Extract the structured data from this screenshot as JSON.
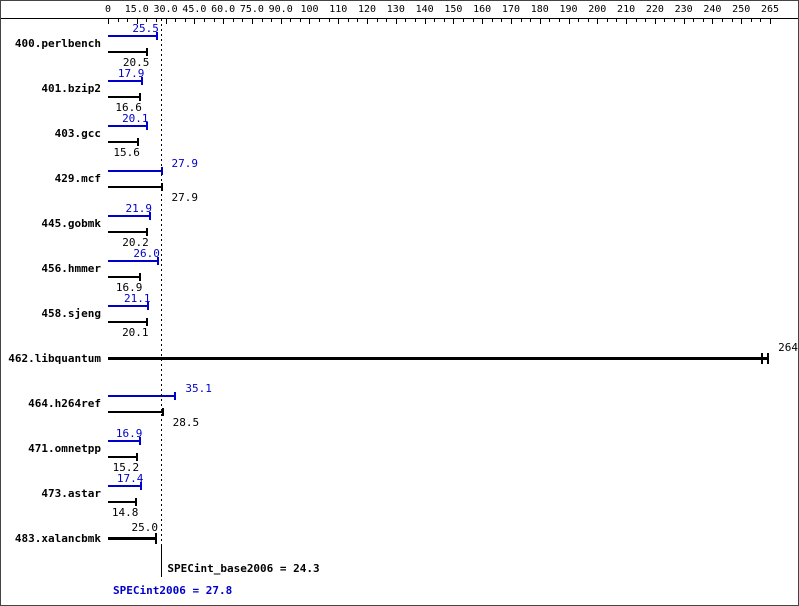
{
  "chart_data": {
    "type": "bar",
    "orientation": "horizontal",
    "grid": false,
    "legend": false,
    "axis": {
      "position": "top",
      "tick_values": [
        0,
        15,
        30,
        45,
        60,
        75,
        90,
        100,
        110,
        120,
        130,
        140,
        150,
        160,
        170,
        180,
        190,
        200,
        210,
        220,
        230,
        240,
        250,
        265
      ],
      "tick_labels": [
        "0",
        "15.0",
        "30.0",
        "45.0",
        "60.0",
        "75.0",
        "90.0",
        "100",
        "110",
        "120",
        "130",
        "140",
        "150",
        "160",
        "170",
        "180",
        "190",
        "200",
        "210",
        "220",
        "230",
        "240",
        "250",
        "265"
      ]
    },
    "series": [
      {
        "name": "peak",
        "color": "#0000cc"
      },
      {
        "name": "base",
        "color": "#000000"
      }
    ],
    "benchmarks": [
      {
        "name": "400.perlbench",
        "peak": 25.5,
        "peak_text": "25.5",
        "base": 20.5,
        "base_text": "20.5"
      },
      {
        "name": "401.bzip2",
        "peak": 17.9,
        "peak_text": "17.9",
        "base": 16.6,
        "base_text": "16.6"
      },
      {
        "name": "403.gcc",
        "peak": 20.1,
        "peak_text": "20.1",
        "base": 15.6,
        "base_text": "15.6"
      },
      {
        "name": "429.mcf",
        "peak": 27.9,
        "peak_text": "27.9",
        "base": 27.9,
        "base_text": "27.9"
      },
      {
        "name": "445.gobmk",
        "peak": 21.9,
        "peak_text": "21.9",
        "base": 20.2,
        "base_text": "20.2"
      },
      {
        "name": "456.hmmer",
        "peak": 26.0,
        "peak_text": "26.0",
        "base": 16.9,
        "base_text": "16.9"
      },
      {
        "name": "458.sjeng",
        "peak": 21.1,
        "peak_text": "21.1",
        "base": 20.1,
        "base_text": "20.1"
      },
      {
        "name": "462.libquantum",
        "single": true,
        "value": 264,
        "value_text": "264",
        "end_marker": "double"
      },
      {
        "name": "464.h264ref",
        "peak": 35.1,
        "peak_text": "35.1",
        "base": 28.5,
        "base_text": "28.5"
      },
      {
        "name": "471.omnetpp",
        "peak": 16.9,
        "peak_text": "16.9",
        "base": 15.2,
        "base_text": "15.2"
      },
      {
        "name": "473.astar",
        "peak": 17.4,
        "peak_text": "17.4",
        "base": 14.8,
        "base_text": "14.8"
      },
      {
        "name": "483.xalancbmk",
        "single": true,
        "value": 25.0,
        "value_text": "25.0",
        "end_marker": "single"
      }
    ],
    "means": {
      "base_value": 24.3,
      "base_label": "SPECint_base2006 = 24.3",
      "peak_value": 27.8,
      "peak_label": "SPECint2006 = 27.8"
    },
    "reference_line_value": 27.8
  },
  "colors": {
    "peak_blue": "#0000cc",
    "base_black": "#000000",
    "background": "#ffffff"
  }
}
